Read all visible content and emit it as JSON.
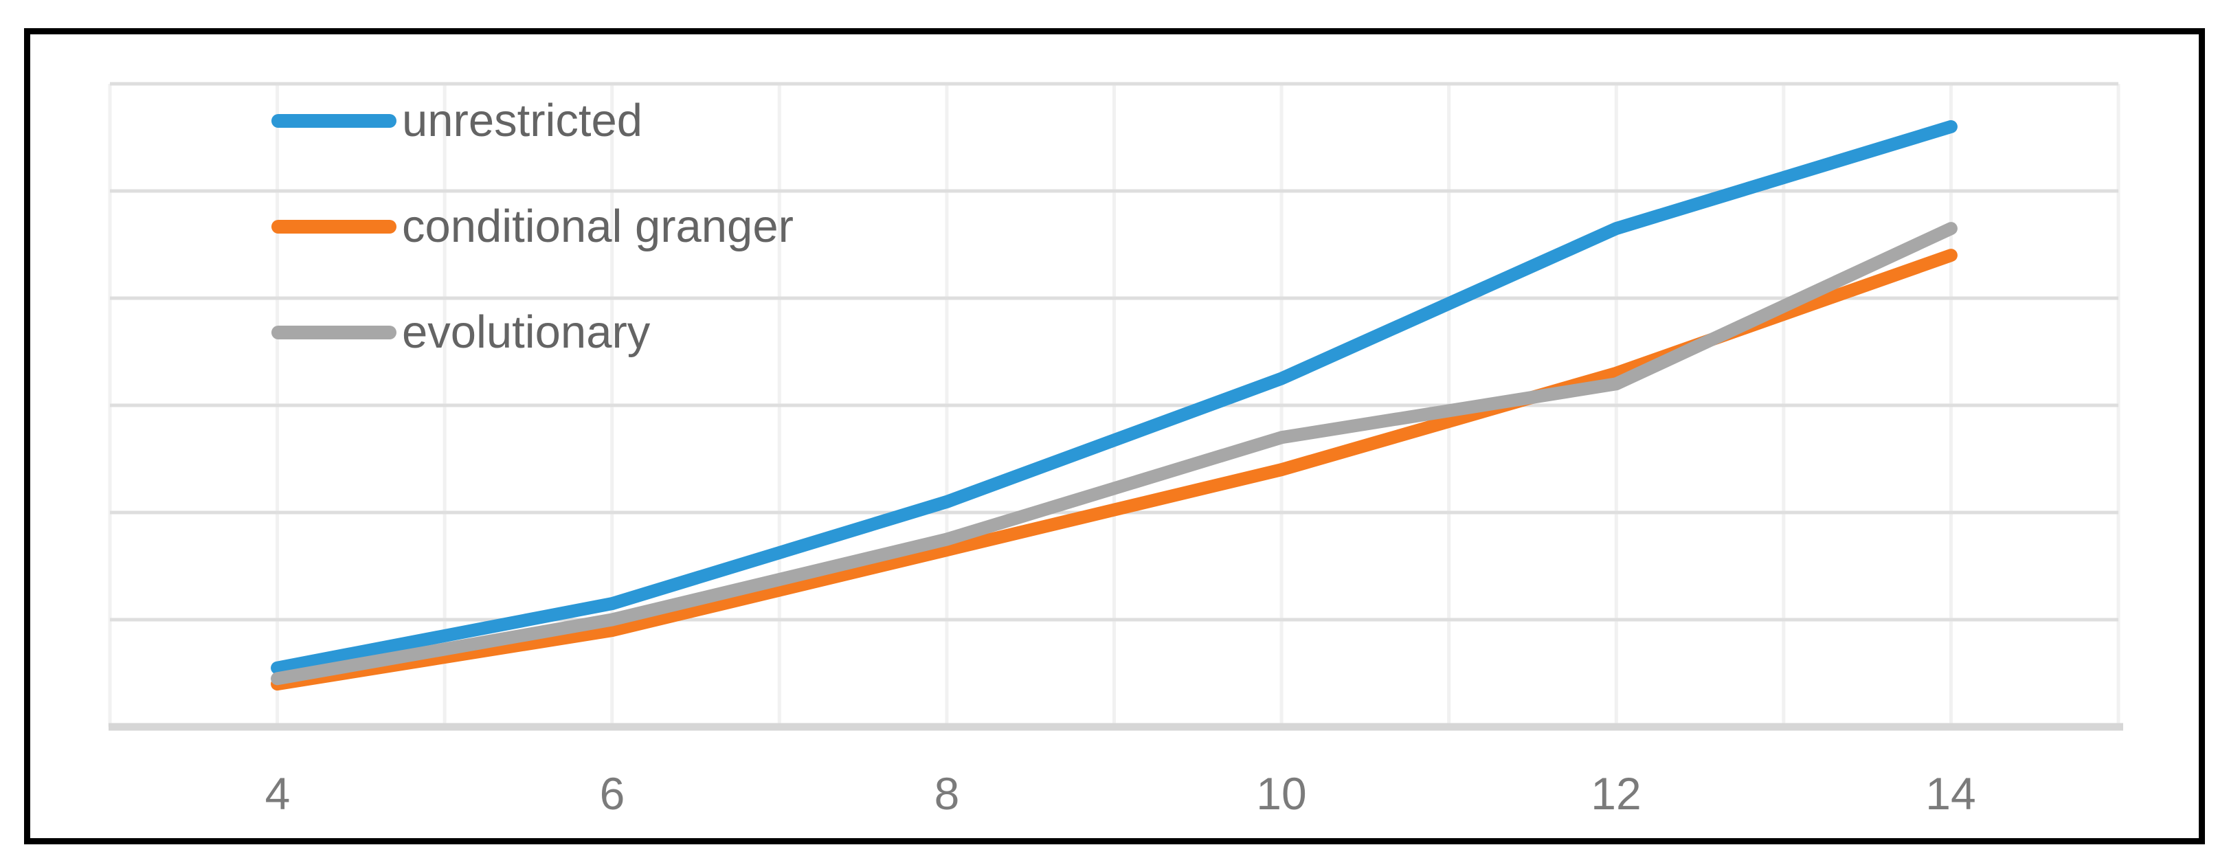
{
  "figure": {
    "background_color": "#FFFFFF",
    "border_color": "#000000"
  },
  "chart_data": {
    "type": "line",
    "title": "",
    "xlabel": "",
    "ylabel": "",
    "x": [
      4,
      6,
      8,
      10,
      12,
      14
    ],
    "x_tick_labels": [
      "4",
      "6",
      "8",
      "10",
      "12",
      "14"
    ],
    "y_tick_labels": [],
    "xlim": [
      3,
      15
    ],
    "ylim": [
      0,
      6
    ],
    "grid": {
      "horizontal": true,
      "vertical": true,
      "horizontal_color": "#DEDEDE",
      "vertical_color": "#F1F1F1",
      "axis_line_color": "#D6D6D6"
    },
    "legend_position": "top-left-overlay",
    "series": [
      {
        "name": "unrestricted",
        "color": "#2B97D6",
        "values": [
          0.55,
          1.15,
          2.1,
          3.25,
          4.65,
          5.6
        ]
      },
      {
        "name": "conditional granger",
        "color": "#F57A1E",
        "values": [
          0.4,
          0.9,
          1.65,
          2.4,
          3.3,
          4.4
        ]
      },
      {
        "name": "evolutionary",
        "color": "#A7A7A7",
        "values": [
          0.45,
          1.0,
          1.75,
          2.7,
          3.2,
          4.65
        ]
      }
    ],
    "y_values_note": "y axis shows no tick labels; series values are estimated in gridline units (0 = bottom axis line, 6 = top gridline)"
  },
  "text_colors": {
    "legend": "#646464",
    "ticks": "#7B7B7B"
  }
}
